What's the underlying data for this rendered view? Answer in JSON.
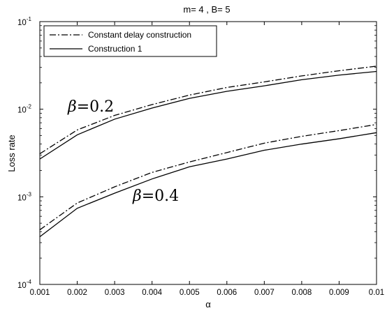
{
  "chart_data": {
    "type": "line",
    "title": "m= 4 ,  B= 5",
    "xlabel": "α",
    "ylabel": "Loss rate",
    "xlim": [
      0.001,
      0.01
    ],
    "ylim": [
      0.0001,
      0.1
    ],
    "yscale": "log",
    "grid": false,
    "legend_position": "top-left",
    "x": [
      0.001,
      0.002,
      0.003,
      0.004,
      0.005,
      0.006,
      0.007,
      0.008,
      0.009,
      0.01
    ],
    "x_tick_labels": [
      "0.001",
      "0.002",
      "0.003",
      "0.004",
      "0.005",
      "0.006",
      "0.007",
      "0.008",
      "0.009",
      "0.01"
    ],
    "y_ticks": [
      {
        "value": 0.0001,
        "base": "10",
        "exp": "-4"
      },
      {
        "value": 0.001,
        "base": "10",
        "exp": "-3"
      },
      {
        "value": 0.01,
        "base": "10",
        "exp": "-2"
      },
      {
        "value": 0.1,
        "base": "10",
        "exp": "-1"
      }
    ],
    "legend": [
      {
        "label": "Constant delay construction",
        "style": "dashdot"
      },
      {
        "label": "Construction 1",
        "style": "solid"
      }
    ],
    "series": [
      {
        "group": "beta=0.2",
        "style": "dashdot",
        "values": [
          0.0031,
          0.0058,
          0.0085,
          0.0113,
          0.0145,
          0.0177,
          0.0205,
          0.024,
          0.0275,
          0.031
        ]
      },
      {
        "group": "beta=0.2",
        "style": "solid",
        "values": [
          0.0027,
          0.0051,
          0.0077,
          0.0103,
          0.0133,
          0.016,
          0.0185,
          0.0217,
          0.0245,
          0.027
        ]
      },
      {
        "group": "beta=0.4",
        "style": "dashdot",
        "values": [
          0.00042,
          0.00085,
          0.0013,
          0.0019,
          0.0025,
          0.0032,
          0.0041,
          0.0049,
          0.0057,
          0.0067
        ]
      },
      {
        "group": "beta=0.4",
        "style": "solid",
        "values": [
          0.00035,
          0.00074,
          0.0011,
          0.0016,
          0.0022,
          0.0027,
          0.0034,
          0.004,
          0.0046,
          0.0054
        ]
      }
    ],
    "annotations": [
      {
        "symbol": "β",
        "text": "=0.2"
      },
      {
        "symbol": "β",
        "text": "=0.4"
      }
    ]
  }
}
